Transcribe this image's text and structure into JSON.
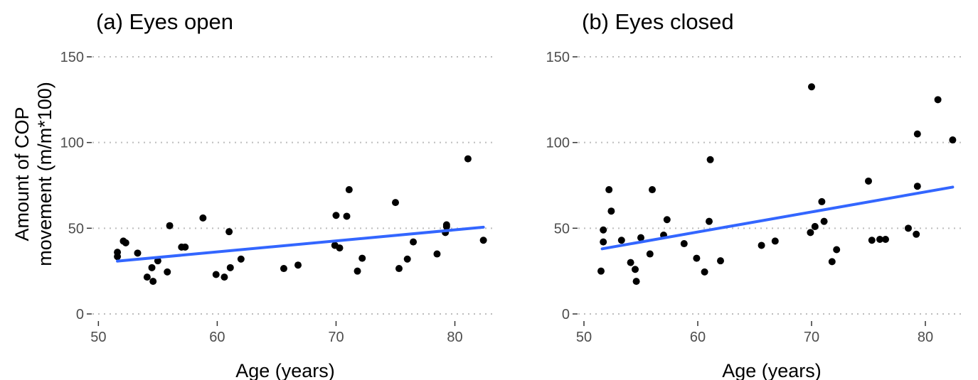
{
  "chart_data": [
    {
      "type": "scatter",
      "title": "(a) Eyes open",
      "xlabel": "Age (years)",
      "ylabel": "Amount of COP movement (m/m*100)",
      "ylabel_lines": [
        "Amount of COP",
        "movement (m/m*100)"
      ],
      "xlim": [
        49.5,
        83.5
      ],
      "ylim": [
        0,
        150
      ],
      "x_ticks": [
        50,
        60,
        70,
        80
      ],
      "y_ticks": [
        0,
        50,
        100,
        150
      ],
      "grid": "horizontal dotted",
      "trend_color": "#3366ff",
      "trendline": {
        "x": [
          51.6,
          82.4
        ],
        "y": [
          30.8,
          50.6
        ]
      },
      "points": [
        {
          "x": 51.6,
          "y": 36
        },
        {
          "x": 51.6,
          "y": 33.5
        },
        {
          "x": 52.1,
          "y": 42.5
        },
        {
          "x": 52.3,
          "y": 41.5
        },
        {
          "x": 53.3,
          "y": 35.5
        },
        {
          "x": 54.1,
          "y": 21.5
        },
        {
          "x": 54.5,
          "y": 27
        },
        {
          "x": 54.6,
          "y": 19
        },
        {
          "x": 55.0,
          "y": 31
        },
        {
          "x": 55.8,
          "y": 24.5
        },
        {
          "x": 56.0,
          "y": 51.5
        },
        {
          "x": 57.0,
          "y": 39
        },
        {
          "x": 57.3,
          "y": 39
        },
        {
          "x": 58.8,
          "y": 56
        },
        {
          "x": 59.9,
          "y": 23
        },
        {
          "x": 60.6,
          "y": 21.5
        },
        {
          "x": 61.0,
          "y": 48
        },
        {
          "x": 61.1,
          "y": 27
        },
        {
          "x": 62.0,
          "y": 32
        },
        {
          "x": 65.6,
          "y": 26.5
        },
        {
          "x": 66.8,
          "y": 28.5
        },
        {
          "x": 69.9,
          "y": 40
        },
        {
          "x": 70.0,
          "y": 57.5
        },
        {
          "x": 70.3,
          "y": 38.5
        },
        {
          "x": 70.9,
          "y": 57
        },
        {
          "x": 71.1,
          "y": 72.5
        },
        {
          "x": 71.8,
          "y": 25
        },
        {
          "x": 72.2,
          "y": 32.5
        },
        {
          "x": 75.0,
          "y": 65
        },
        {
          "x": 75.3,
          "y": 26.5
        },
        {
          "x": 76.0,
          "y": 32
        },
        {
          "x": 76.5,
          "y": 42
        },
        {
          "x": 78.5,
          "y": 35
        },
        {
          "x": 79.2,
          "y": 47.5
        },
        {
          "x": 79.3,
          "y": 52
        },
        {
          "x": 79.3,
          "y": 51
        },
        {
          "x": 81.1,
          "y": 90.5
        },
        {
          "x": 82.4,
          "y": 43
        }
      ]
    },
    {
      "type": "scatter",
      "title": "(b) Eyes closed",
      "xlabel": "Age (years)",
      "ylabel": "",
      "xlim": [
        49.5,
        83.5
      ],
      "ylim": [
        0,
        150
      ],
      "x_ticks": [
        50,
        60,
        70,
        80
      ],
      "y_ticks": [
        0,
        50,
        100,
        150
      ],
      "grid": "horizontal dotted",
      "trend_color": "#3366ff",
      "trendline": {
        "x": [
          51.6,
          82.4
        ],
        "y": [
          38,
          74
        ]
      },
      "points": [
        {
          "x": 51.5,
          "y": 25
        },
        {
          "x": 51.7,
          "y": 49
        },
        {
          "x": 51.7,
          "y": 42
        },
        {
          "x": 52.2,
          "y": 72.5
        },
        {
          "x": 52.4,
          "y": 60
        },
        {
          "x": 53.3,
          "y": 43
        },
        {
          "x": 54.1,
          "y": 30
        },
        {
          "x": 54.5,
          "y": 26
        },
        {
          "x": 54.6,
          "y": 19
        },
        {
          "x": 55.0,
          "y": 44.5
        },
        {
          "x": 55.8,
          "y": 35
        },
        {
          "x": 56.0,
          "y": 72.5
        },
        {
          "x": 57.0,
          "y": 46
        },
        {
          "x": 57.3,
          "y": 55
        },
        {
          "x": 58.8,
          "y": 41
        },
        {
          "x": 59.9,
          "y": 32.5
        },
        {
          "x": 60.6,
          "y": 24.5
        },
        {
          "x": 61.0,
          "y": 54
        },
        {
          "x": 61.1,
          "y": 90
        },
        {
          "x": 62.0,
          "y": 31
        },
        {
          "x": 65.6,
          "y": 40
        },
        {
          "x": 66.8,
          "y": 42.5
        },
        {
          "x": 69.9,
          "y": 47.5
        },
        {
          "x": 70.0,
          "y": 132.5
        },
        {
          "x": 70.3,
          "y": 51
        },
        {
          "x": 70.9,
          "y": 65.5
        },
        {
          "x": 71.1,
          "y": 54
        },
        {
          "x": 71.8,
          "y": 30.5
        },
        {
          "x": 72.2,
          "y": 37.5
        },
        {
          "x": 75.0,
          "y": 77.5
        },
        {
          "x": 75.3,
          "y": 43
        },
        {
          "x": 76.0,
          "y": 43.5
        },
        {
          "x": 76.5,
          "y": 43.5
        },
        {
          "x": 78.5,
          "y": 50
        },
        {
          "x": 79.2,
          "y": 46.5
        },
        {
          "x": 79.3,
          "y": 105
        },
        {
          "x": 79.3,
          "y": 74.5
        },
        {
          "x": 81.1,
          "y": 125
        },
        {
          "x": 82.4,
          "y": 101.5
        }
      ]
    }
  ]
}
